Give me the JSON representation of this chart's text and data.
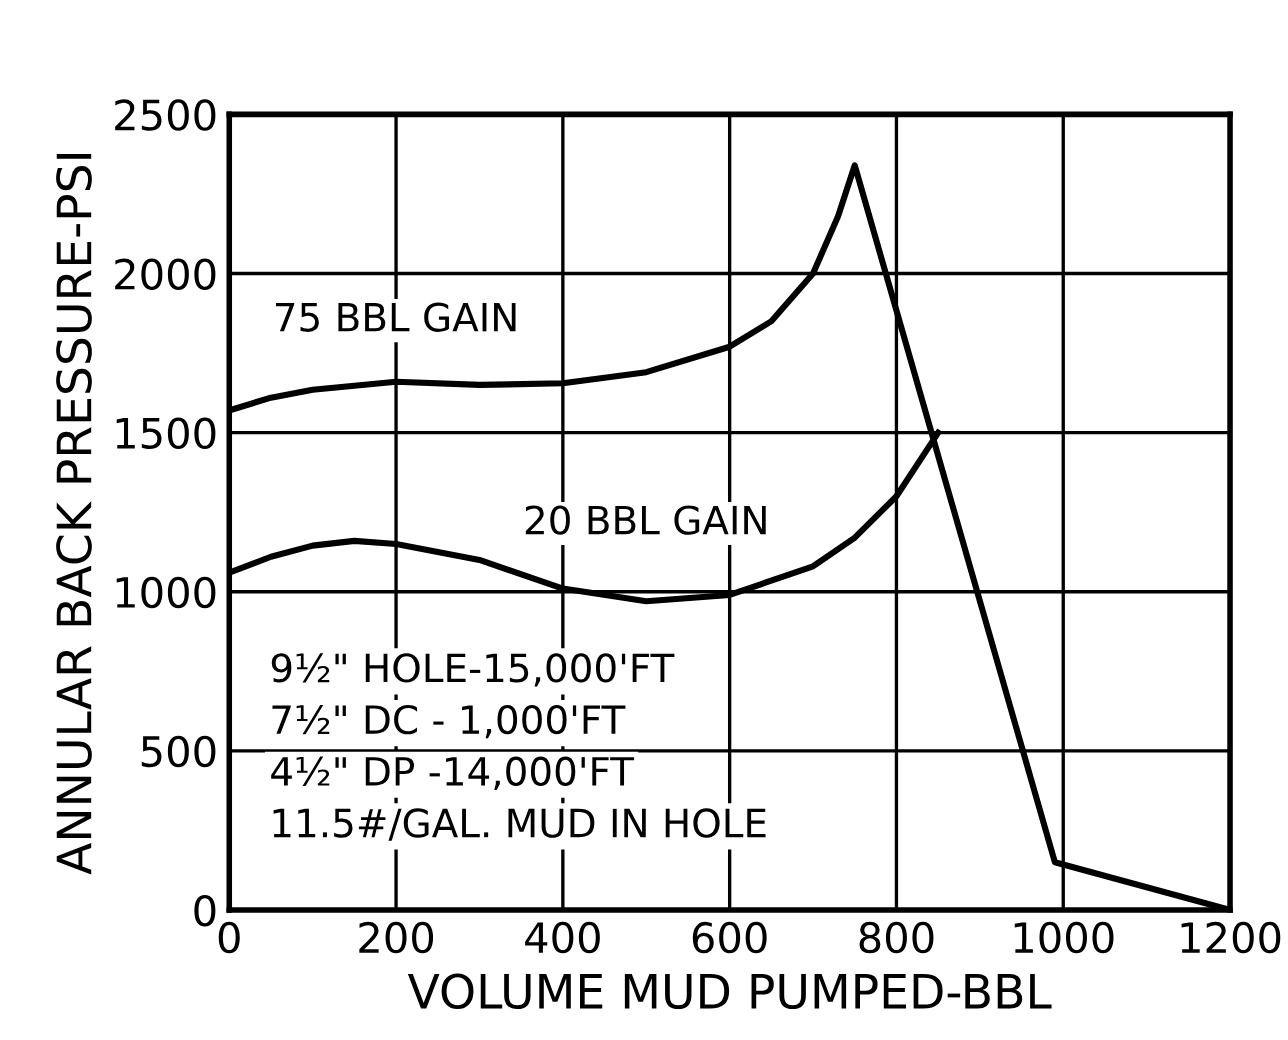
{
  "chart_data": {
    "type": "line",
    "xlabel": "VOLUME MUD PUMPED-BBL",
    "ylabel": "ANNULAR BACK PRESSURE-PSI",
    "xlim": [
      0,
      1200
    ],
    "xticks": [
      0,
      200,
      400,
      600,
      800,
      1000,
      1200
    ],
    "ylim": [
      0,
      2500
    ],
    "yticks": [
      0,
      500,
      1000,
      1500,
      2000,
      2500
    ],
    "grid": true,
    "legend": false,
    "marker": "none",
    "line_style": "solid",
    "series": [
      {
        "name": "75 BBL GAIN",
        "color": "#000000",
        "x": [
          0,
          50,
          100,
          200,
          300,
          400,
          500,
          600,
          650,
          700,
          730,
          750,
          990,
          1200
        ],
        "values": [
          1570,
          1610,
          1635,
          1660,
          1650,
          1655,
          1690,
          1770,
          1850,
          2000,
          2180,
          2340,
          150,
          0
        ]
      },
      {
        "name": "20 BBL GAIN",
        "color": "#000000",
        "x": [
          0,
          50,
          100,
          150,
          200,
          300,
          400,
          500,
          600,
          700,
          750,
          800,
          830,
          850
        ],
        "values": [
          1060,
          1110,
          1145,
          1160,
          1150,
          1100,
          1010,
          970,
          990,
          1080,
          1170,
          1300,
          1420,
          1500
        ]
      }
    ],
    "annotations": [
      "9½\" HOLE-15,000'FT",
      "7½\" DC - 1,000'FT",
      "4½\" DP -14,000'FT",
      "11.5#/GAL. MUD IN HOLE"
    ]
  }
}
